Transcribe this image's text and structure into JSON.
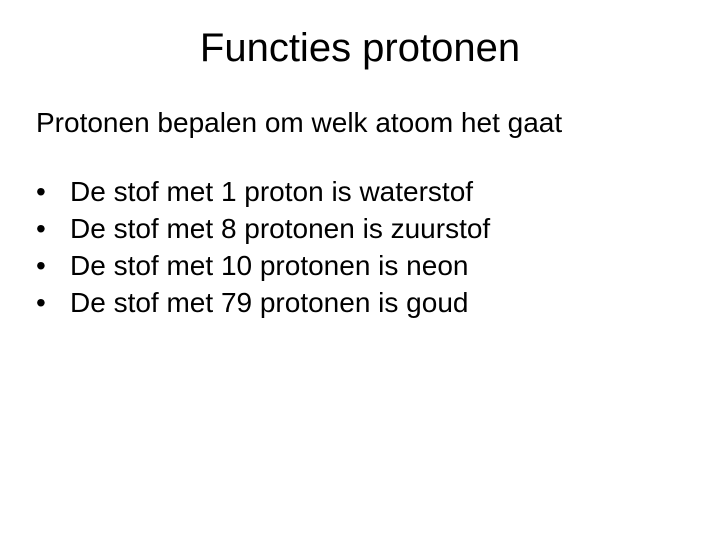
{
  "slide": {
    "title": "Functies protonen",
    "subtitle": "Protonen bepalen om welk atoom het gaat",
    "bullets": [
      "De stof met 1 proton is waterstof",
      "De stof met 8 protonen is zuurstof",
      "De stof met 10 protonen is neon",
      "De stof met 79 protonen is goud"
    ],
    "bullet_glyph": "•",
    "colors": {
      "background": "#ffffff",
      "text": "#000000"
    },
    "fontsizes": {
      "title": 40,
      "body": 28
    }
  }
}
